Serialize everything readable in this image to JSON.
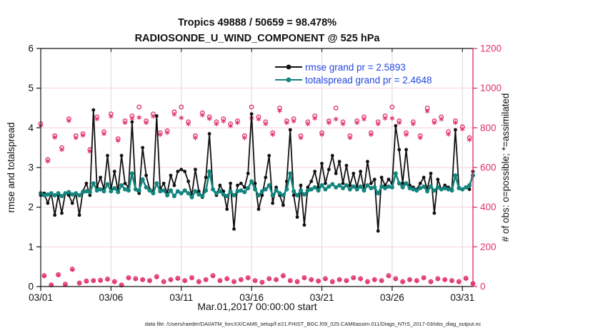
{
  "footer": {
    "datafile": "data file: /Users/raeder/DAI/ATM_forcXX/CAM6_setup/f.e21.FHIST_BGC.f09_025.CAM6assim.011/Diags_NTrS_2017-03/obs_diag_output.nc"
  },
  "colors": {
    "pink": "#e0336c",
    "grid_horizontal": "#f5d2de",
    "grid_vertical": "#ded7d7",
    "rmse_black": "#111111",
    "totalspread_teal": "#11857e",
    "legend_blue": "#2247e0",
    "axis_black": "#111111",
    "background": "#ffffff"
  },
  "chart_data": {
    "type": "line",
    "title": "Tropics 49888 / 50659 = 98.478%",
    "subtitle": "RADIOSONDE_U_WIND_COMPONENT @ 525 hPa",
    "xlabel": "Mar.01,2017 00:00:00 start",
    "ylabel_left": "rmse and totalspread",
    "ylabel_right": "# of obs: o=possible; *=assimilated",
    "x_description": "6-hourly analysis times from 03/01 00:00Z to 03/31 18:00Z (124 points)",
    "n_points": 124,
    "x_tick_labels": [
      "03/01",
      "03/06",
      "03/11",
      "03/16",
      "03/21",
      "03/26",
      "03/31"
    ],
    "x_tick_steps": [
      0,
      20,
      40,
      60,
      80,
      100,
      120
    ],
    "ylim_left": [
      0,
      6
    ],
    "yticks_left": [
      "0",
      "1",
      "2",
      "3",
      "4",
      "5",
      "6"
    ],
    "ylim_right": [
      0,
      1200
    ],
    "yticks_right": [
      "0",
      "200",
      "400",
      "600",
      "800",
      "1000",
      "1200"
    ],
    "grid": true,
    "legend": {
      "position": "top-inside",
      "entries": [
        {
          "label": "rmse grand pr = 2.5893",
          "color": "#111111",
          "series": "rmse"
        },
        {
          "label": "totalspread grand pr = 2.4648",
          "color": "#11857e",
          "series": "totalspread"
        }
      ]
    },
    "series": [
      {
        "name": "rmse",
        "axis": "left",
        "color": "#111111",
        "marker": "dot",
        "line": true,
        "values": [
          2.3,
          2.35,
          2.1,
          2.35,
          1.8,
          2.3,
          1.85,
          2.35,
          2.3,
          2.1,
          2.35,
          1.8,
          2.4,
          2.6,
          2.3,
          4.45,
          2.5,
          2.75,
          2.45,
          3.3,
          2.45,
          2.9,
          2.4,
          3.3,
          2.6,
          2.5,
          4.15,
          2.45,
          2.35,
          3.5,
          2.8,
          2.45,
          2.4,
          4.3,
          2.45,
          2.6,
          2.35,
          2.8,
          2.55,
          2.9,
          2.95,
          2.9,
          2.65,
          2.3,
          2.95,
          2.4,
          2.25,
          2.75,
          3.85,
          2.45,
          2.3,
          2.55,
          2.4,
          1.95,
          2.6,
          1.45,
          2.55,
          2.6,
          2.5,
          2.85,
          4.35,
          2.6,
          1.95,
          2.3,
          2.75,
          3.3,
          2.1,
          2.5,
          2.3,
          2.05,
          2.65,
          3.95,
          2.3,
          1.75,
          2.55,
          1.55,
          2.5,
          2.65,
          2.9,
          2.5,
          3.1,
          2.6,
          2.95,
          3.3,
          2.85,
          3.15,
          2.6,
          3.05,
          2.55,
          2.85,
          2.5,
          2.9,
          2.45,
          3.15,
          2.6,
          2.7,
          1.4,
          2.75,
          2.55,
          2.7,
          2.6,
          4.05,
          3.45,
          2.6,
          3.45,
          2.55,
          2.5,
          2.45,
          2.6,
          2.75,
          2.45,
          2.85,
          1.85,
          2.7,
          2.45,
          2.55,
          2.5,
          2.45,
          3.95,
          2.5,
          2.45,
          2.5,
          2.45,
          2.9
        ]
      },
      {
        "name": "totalspread",
        "axis": "left",
        "color": "#11857e",
        "marker": "dot",
        "line": true,
        "values": [
          2.35,
          2.3,
          2.32,
          2.35,
          2.3,
          2.35,
          2.28,
          2.35,
          2.38,
          2.32,
          2.35,
          2.3,
          2.38,
          2.4,
          2.38,
          2.6,
          2.42,
          2.45,
          2.4,
          2.58,
          2.4,
          2.48,
          2.38,
          2.55,
          2.45,
          2.42,
          2.85,
          2.45,
          2.42,
          2.7,
          2.5,
          2.42,
          2.35,
          2.6,
          2.4,
          2.42,
          2.3,
          2.42,
          2.28,
          2.4,
          2.35,
          2.42,
          2.35,
          2.25,
          2.4,
          2.32,
          2.28,
          2.42,
          2.9,
          2.45,
          2.35,
          2.4,
          2.32,
          2.28,
          2.4,
          2.3,
          2.4,
          2.42,
          2.38,
          2.48,
          2.65,
          2.45,
          2.3,
          2.4,
          2.45,
          2.55,
          2.3,
          2.42,
          2.35,
          2.3,
          2.45,
          2.85,
          2.4,
          2.3,
          2.42,
          2.32,
          2.42,
          2.45,
          2.5,
          2.42,
          2.55,
          2.45,
          2.52,
          2.58,
          2.5,
          2.55,
          2.48,
          2.55,
          2.45,
          2.52,
          2.45,
          2.52,
          2.42,
          2.55,
          2.48,
          2.5,
          2.35,
          2.52,
          2.48,
          2.52,
          2.5,
          2.85,
          2.6,
          2.5,
          2.6,
          2.48,
          2.45,
          2.42,
          2.48,
          2.52,
          2.4,
          2.52,
          2.42,
          2.5,
          2.45,
          2.48,
          2.45,
          2.42,
          2.8,
          2.48,
          2.45,
          2.5,
          2.55,
          2.8
        ]
      },
      {
        "name": "possible",
        "axis": "right",
        "color": "#e0336c",
        "marker": "circle",
        "line": false,
        "values": [
          820,
          55,
          640,
          8,
          760,
          60,
          700,
          12,
          845,
          88,
          760,
          18,
          770,
          28,
          690,
          30,
          855,
          32,
          780,
          38,
          870,
          25,
          745,
          8,
          835,
          45,
          860,
          40,
          905,
          35,
          835,
          30,
          870,
          50,
          775,
          25,
          785,
          35,
          880,
          42,
          905,
          30,
          830,
          45,
          760,
          25,
          875,
          35,
          855,
          55,
          830,
          30,
          845,
          40,
          820,
          25,
          835,
          35,
          760,
          45,
          905,
          30,
          855,
          22,
          830,
          40,
          775,
          35,
          900,
          55,
          835,
          30,
          845,
          25,
          760,
          45,
          830,
          35,
          860,
          28,
          775,
          40,
          835,
          25,
          900,
          35,
          830,
          30,
          760,
          45,
          835,
          40,
          855,
          25,
          775,
          35,
          830,
          30,
          860,
          55,
          905,
          40,
          835,
          25,
          775,
          35,
          830,
          30,
          760,
          45,
          900,
          25,
          835,
          40,
          855,
          35,
          780,
          30,
          835,
          25,
          805,
          42,
          750,
          15
        ]
      },
      {
        "name": "assimilated",
        "axis": "right",
        "color": "#e0336c",
        "marker": "asterisk",
        "line": false,
        "values": [
          812,
          53,
          632,
          8,
          752,
          58,
          690,
          10,
          836,
          85,
          750,
          17,
          762,
          26,
          682,
          29,
          845,
          30,
          770,
          36,
          858,
          24,
          736,
          7,
          826,
          43,
          848,
          38,
          852,
          34,
          826,
          29,
          858,
          48,
          766,
          24,
          776,
          34,
          868,
          40,
          850,
          29,
          820,
          43,
          750,
          24,
          864,
          34,
          846,
          53,
          820,
          29,
          834,
          38,
          810,
          24,
          826,
          34,
          750,
          43,
          850,
          29,
          844,
          21,
          820,
          38,
          766,
          34,
          886,
          53,
          826,
          29,
          834,
          24,
          750,
          43,
          820,
          34,
          848,
          27,
          766,
          38,
          826,
          24,
          844,
          34,
          820,
          29,
          750,
          43,
          826,
          38,
          844,
          24,
          766,
          34,
          820,
          29,
          848,
          53,
          848,
          38,
          826,
          24,
          766,
          34,
          820,
          29,
          750,
          43,
          884,
          24,
          826,
          38,
          844,
          34,
          768,
          29,
          826,
          24,
          794,
          40,
          740,
          14
        ]
      }
    ]
  }
}
